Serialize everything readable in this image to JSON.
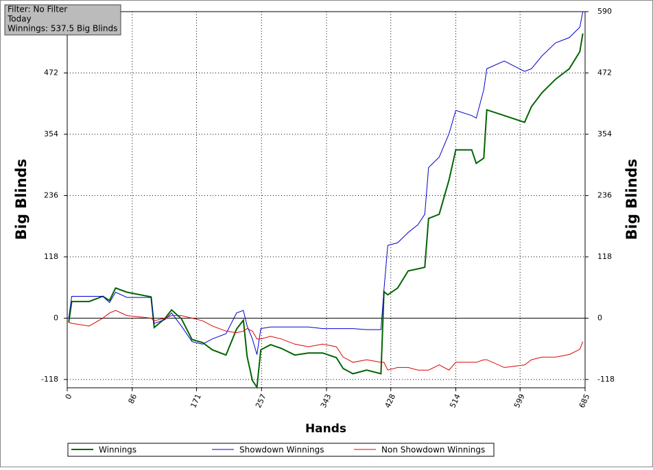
{
  "chart_data": {
    "type": "line",
    "info": [
      "Filter: No Filter",
      "Today",
      "Winnings: 537.5 Big Blinds"
    ],
    "xlabel": "Hands",
    "ylabel": "Big Blinds",
    "y2label": "Big Blinds",
    "x": [
      2,
      6,
      29,
      47,
      56,
      64,
      79,
      111,
      115,
      129,
      138,
      151,
      165,
      179,
      192,
      210,
      224,
      233,
      238,
      245,
      251,
      256,
      269,
      283,
      301,
      319,
      338,
      356,
      365,
      378,
      396,
      415,
      419,
      424,
      437,
      451,
      464,
      473,
      478,
      492,
      505,
      514,
      535,
      541,
      551,
      555,
      578,
      605,
      614,
      628,
      646,
      664,
      678,
      682
    ],
    "series": [
      {
        "name": "Winnings",
        "color": "#006400",
        "values": [
          -8,
          32,
          32,
          42,
          34,
          58,
          50,
          41,
          -18,
          -1,
          16,
          -1,
          -41,
          -47,
          -61,
          -71,
          -21,
          -4,
          -74,
          -120,
          -133,
          -61,
          -51,
          -58,
          -71,
          -67,
          -67,
          -76,
          -97,
          -107,
          -100,
          -107,
          51,
          45,
          58,
          91,
          95,
          98,
          192,
          200,
          266,
          324,
          324,
          298,
          308,
          401,
          390,
          377,
          407,
          434,
          460,
          480,
          513,
          548
        ]
      },
      {
        "name": "Showdown Winnings",
        "color": "#0000cc",
        "values": [
          0,
          42,
          42,
          42,
          30,
          50,
          40,
          40,
          -10,
          -3,
          10,
          -15,
          -45,
          -50,
          -40,
          -30,
          10,
          15,
          -15,
          -40,
          -70,
          -20,
          -17,
          -17,
          -17,
          -17,
          -20,
          -20,
          -20,
          -20,
          -22,
          -22,
          55,
          140,
          145,
          165,
          180,
          200,
          290,
          310,
          355,
          400,
          390,
          385,
          440,
          480,
          495,
          475,
          480,
          505,
          530,
          540,
          560,
          590
        ]
      },
      {
        "name": "Non Showdown Winnings",
        "color": "#dd0000",
        "values": [
          -8,
          -10,
          -15,
          0,
          10,
          15,
          5,
          0,
          -5,
          0,
          5,
          5,
          0,
          -5,
          -15,
          -25,
          -28,
          -25,
          -20,
          -25,
          -40,
          -40,
          -35,
          -40,
          -50,
          -55,
          -50,
          -55,
          -75,
          -85,
          -80,
          -85,
          -85,
          -100,
          -95,
          -95,
          -100,
          -100,
          -100,
          -90,
          -100,
          -85,
          -85,
          -85,
          -80,
          -80,
          -95,
          -90,
          -80,
          -75,
          -75,
          -70,
          -60,
          -45
        ]
      }
    ],
    "xlim": [
      0,
      685
    ],
    "xticks": [
      0,
      86,
      171,
      257,
      343,
      428,
      514,
      599,
      685
    ],
    "ylim": [
      -134,
      590
    ],
    "yticks": [
      -118,
      0,
      118,
      236,
      354,
      472
    ],
    "y2lim": [
      -134,
      590
    ],
    "y2ticks": [
      -118,
      0,
      118,
      236,
      354,
      472,
      590
    ],
    "grid": true
  }
}
